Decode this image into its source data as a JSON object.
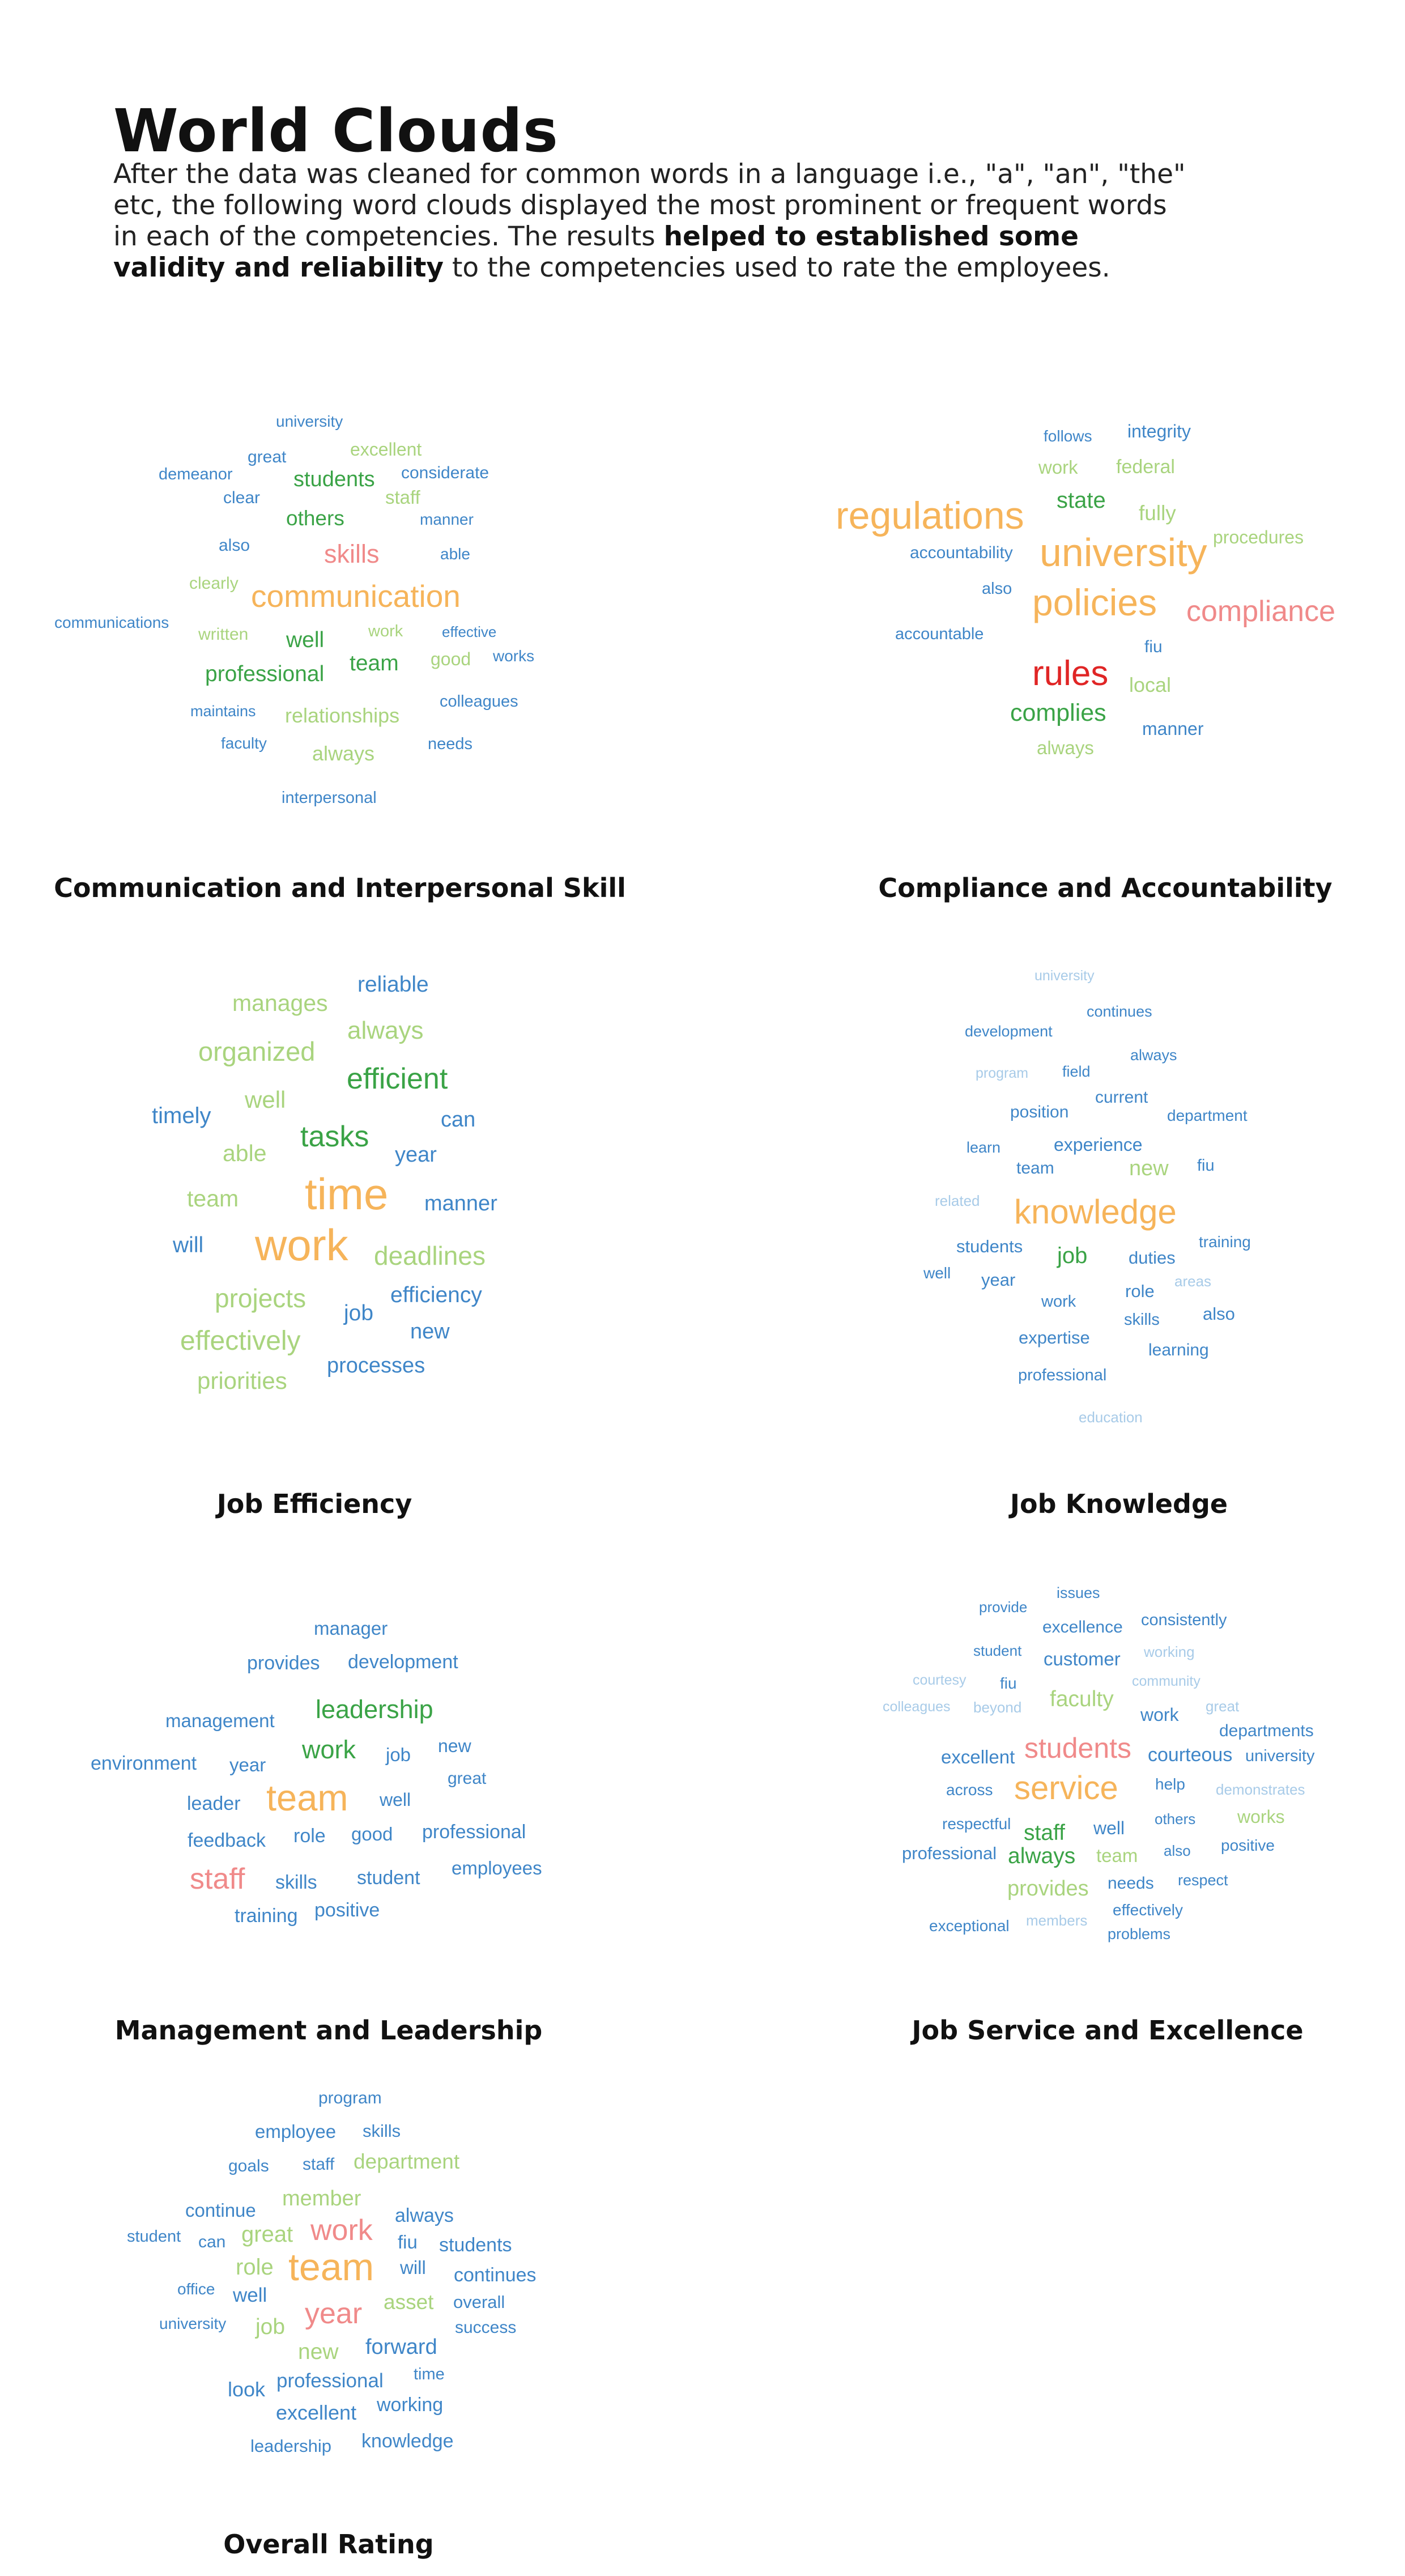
{
  "title": "World Clouds",
  "intro": {
    "lead": " After the data was cleaned for common words in a language i.e., \"a\", \"an\", \"the\" etc, the following word clouds displayed the most prominent or frequent words in each of the competencies. The results ",
    "emphasis": "helped to established some validity and reliability",
    "tail": " to the competencies used to rate the employees."
  },
  "colors": {
    "blue": "#3f86c8",
    "lightblue": "#a8cbe8",
    "green": "#3aa346",
    "lightgreen": "#a9d47e",
    "orange": "#f6b45a",
    "pink": "#f08a8a",
    "red": "#e02525"
  },
  "clouds": [
    {
      "caption": "Communication and Interpersonal Skill",
      "words": [
        {
          "text": "university",
          "color": "blue"
        },
        {
          "text": "great",
          "color": "blue"
        },
        {
          "text": "excellent",
          "color": "lightgreen"
        },
        {
          "text": "demeanor",
          "color": "blue"
        },
        {
          "text": "students",
          "color": "green"
        },
        {
          "text": "considerate",
          "color": "blue"
        },
        {
          "text": "clear",
          "color": "blue"
        },
        {
          "text": "staff",
          "color": "lightgreen"
        },
        {
          "text": "others",
          "color": "green"
        },
        {
          "text": "manner",
          "color": "blue"
        },
        {
          "text": "also",
          "color": "blue"
        },
        {
          "text": "skills",
          "color": "pink"
        },
        {
          "text": "able",
          "color": "blue"
        },
        {
          "text": "clearly",
          "color": "lightgreen"
        },
        {
          "text": "communication",
          "color": "orange"
        },
        {
          "text": "communications",
          "color": "blue"
        },
        {
          "text": "written",
          "color": "lightgreen"
        },
        {
          "text": "well",
          "color": "green"
        },
        {
          "text": "work",
          "color": "lightgreen"
        },
        {
          "text": "effective",
          "color": "blue"
        },
        {
          "text": "good",
          "color": "lightgreen"
        },
        {
          "text": "works",
          "color": "blue"
        },
        {
          "text": "professional",
          "color": "green"
        },
        {
          "text": "team",
          "color": "green"
        },
        {
          "text": "colleagues",
          "color": "blue"
        },
        {
          "text": "maintains",
          "color": "blue"
        },
        {
          "text": "relationships",
          "color": "lightgreen"
        },
        {
          "text": "faculty",
          "color": "blue"
        },
        {
          "text": "always",
          "color": "lightgreen"
        },
        {
          "text": "needs",
          "color": "blue"
        },
        {
          "text": "interpersonal",
          "color": "blue"
        }
      ]
    },
    {
      "caption": "Compliance and Accountability",
      "words": [
        {
          "text": "follows",
          "color": "blue"
        },
        {
          "text": "integrity",
          "color": "blue"
        },
        {
          "text": "work",
          "color": "lightgreen"
        },
        {
          "text": "federal",
          "color": "lightgreen"
        },
        {
          "text": "state",
          "color": "green"
        },
        {
          "text": "regulations",
          "color": "orange"
        },
        {
          "text": "fully",
          "color": "lightgreen"
        },
        {
          "text": "procedures",
          "color": "lightgreen"
        },
        {
          "text": "accountability",
          "color": "blue"
        },
        {
          "text": "university",
          "color": "orange"
        },
        {
          "text": "also",
          "color": "blue"
        },
        {
          "text": "policies",
          "color": "orange"
        },
        {
          "text": "compliance",
          "color": "pink"
        },
        {
          "text": "accountable",
          "color": "blue"
        },
        {
          "text": "fiu",
          "color": "blue"
        },
        {
          "text": "rules",
          "color": "red"
        },
        {
          "text": "local",
          "color": "lightgreen"
        },
        {
          "text": "complies",
          "color": "green"
        },
        {
          "text": "manner",
          "color": "blue"
        },
        {
          "text": "always",
          "color": "lightgreen"
        }
      ]
    },
    {
      "caption": "Job Efficiency",
      "words": [
        {
          "text": "reliable",
          "color": "blue"
        },
        {
          "text": "manages",
          "color": "lightgreen"
        },
        {
          "text": "always",
          "color": "lightgreen"
        },
        {
          "text": "organized",
          "color": "lightgreen"
        },
        {
          "text": "efficient",
          "color": "green"
        },
        {
          "text": "well",
          "color": "lightgreen"
        },
        {
          "text": "timely",
          "color": "blue"
        },
        {
          "text": "can",
          "color": "blue"
        },
        {
          "text": "tasks",
          "color": "green"
        },
        {
          "text": "able",
          "color": "lightgreen"
        },
        {
          "text": "year",
          "color": "blue"
        },
        {
          "text": "team",
          "color": "lightgreen"
        },
        {
          "text": "time",
          "color": "orange"
        },
        {
          "text": "manner",
          "color": "blue"
        },
        {
          "text": "will",
          "color": "blue"
        },
        {
          "text": "work",
          "color": "orange"
        },
        {
          "text": "deadlines",
          "color": "lightgreen"
        },
        {
          "text": "projects",
          "color": "lightgreen"
        },
        {
          "text": "efficiency",
          "color": "blue"
        },
        {
          "text": "job",
          "color": "blue"
        },
        {
          "text": "effectively",
          "color": "lightgreen"
        },
        {
          "text": "new",
          "color": "blue"
        },
        {
          "text": "processes",
          "color": "blue"
        },
        {
          "text": "priorities",
          "color": "lightgreen"
        }
      ]
    },
    {
      "caption": "Job Knowledge",
      "words": [
        {
          "text": "university",
          "color": "lightblue"
        },
        {
          "text": "continues",
          "color": "blue"
        },
        {
          "text": "development",
          "color": "blue"
        },
        {
          "text": "always",
          "color": "blue"
        },
        {
          "text": "program",
          "color": "lightblue"
        },
        {
          "text": "field",
          "color": "blue"
        },
        {
          "text": "current",
          "color": "blue"
        },
        {
          "text": "position",
          "color": "blue"
        },
        {
          "text": "department",
          "color": "blue"
        },
        {
          "text": "learn",
          "color": "blue"
        },
        {
          "text": "experience",
          "color": "blue"
        },
        {
          "text": "team",
          "color": "blue"
        },
        {
          "text": "new",
          "color": "lightgreen"
        },
        {
          "text": "fiu",
          "color": "blue"
        },
        {
          "text": "related",
          "color": "lightblue"
        },
        {
          "text": "knowledge",
          "color": "orange"
        },
        {
          "text": "training",
          "color": "blue"
        },
        {
          "text": "students",
          "color": "blue"
        },
        {
          "text": "job",
          "color": "green"
        },
        {
          "text": "duties",
          "color": "blue"
        },
        {
          "text": "well",
          "color": "blue"
        },
        {
          "text": "year",
          "color": "blue"
        },
        {
          "text": "areas",
          "color": "lightblue"
        },
        {
          "text": "role",
          "color": "blue"
        },
        {
          "text": "work",
          "color": "blue"
        },
        {
          "text": "also",
          "color": "blue"
        },
        {
          "text": "skills",
          "color": "blue"
        },
        {
          "text": "expertise",
          "color": "blue"
        },
        {
          "text": "learning",
          "color": "blue"
        },
        {
          "text": "professional",
          "color": "blue"
        },
        {
          "text": "education",
          "color": "lightblue"
        }
      ]
    },
    {
      "caption": "Management and Leadership",
      "words": [
        {
          "text": "manager",
          "color": "blue"
        },
        {
          "text": "provides",
          "color": "blue"
        },
        {
          "text": "development",
          "color": "blue"
        },
        {
          "text": "leadership",
          "color": "green"
        },
        {
          "text": "management",
          "color": "blue"
        },
        {
          "text": "work",
          "color": "green"
        },
        {
          "text": "new",
          "color": "blue"
        },
        {
          "text": "environment",
          "color": "blue"
        },
        {
          "text": "year",
          "color": "blue"
        },
        {
          "text": "job",
          "color": "blue"
        },
        {
          "text": "great",
          "color": "blue"
        },
        {
          "text": "leader",
          "color": "blue"
        },
        {
          "text": "team",
          "color": "orange"
        },
        {
          "text": "well",
          "color": "blue"
        },
        {
          "text": "feedback",
          "color": "blue"
        },
        {
          "text": "role",
          "color": "blue"
        },
        {
          "text": "good",
          "color": "blue"
        },
        {
          "text": "professional",
          "color": "blue"
        },
        {
          "text": "staff",
          "color": "pink"
        },
        {
          "text": "skills",
          "color": "blue"
        },
        {
          "text": "student",
          "color": "blue"
        },
        {
          "text": "employees",
          "color": "blue"
        },
        {
          "text": "training",
          "color": "blue"
        },
        {
          "text": "positive",
          "color": "blue"
        }
      ]
    },
    {
      "caption": "Job Service and Excellence",
      "words": [
        {
          "text": "issues",
          "color": "blue"
        },
        {
          "text": "provide",
          "color": "blue"
        },
        {
          "text": "excellence",
          "color": "blue"
        },
        {
          "text": "consistently",
          "color": "blue"
        },
        {
          "text": "student",
          "color": "blue"
        },
        {
          "text": "customer",
          "color": "blue"
        },
        {
          "text": "working",
          "color": "lightblue"
        },
        {
          "text": "courtesy",
          "color": "lightblue"
        },
        {
          "text": "fiu",
          "color": "blue"
        },
        {
          "text": "community",
          "color": "lightblue"
        },
        {
          "text": "colleagues",
          "color": "lightblue"
        },
        {
          "text": "beyond",
          "color": "lightblue"
        },
        {
          "text": "faculty",
          "color": "lightgreen"
        },
        {
          "text": "work",
          "color": "blue"
        },
        {
          "text": "great",
          "color": "lightblue"
        },
        {
          "text": "departments",
          "color": "blue"
        },
        {
          "text": "excellent",
          "color": "blue"
        },
        {
          "text": "students",
          "color": "pink"
        },
        {
          "text": "courteous",
          "color": "blue"
        },
        {
          "text": "university",
          "color": "blue"
        },
        {
          "text": "across",
          "color": "blue"
        },
        {
          "text": "service",
          "color": "orange"
        },
        {
          "text": "help",
          "color": "blue"
        },
        {
          "text": "demonstrates",
          "color": "lightblue"
        },
        {
          "text": "respectful",
          "color": "blue"
        },
        {
          "text": "others",
          "color": "blue"
        },
        {
          "text": "works",
          "color": "lightgreen"
        },
        {
          "text": "staff",
          "color": "green"
        },
        {
          "text": "well",
          "color": "blue"
        },
        {
          "text": "positive",
          "color": "blue"
        },
        {
          "text": "professional",
          "color": "blue"
        },
        {
          "text": "always",
          "color": "green"
        },
        {
          "text": "team",
          "color": "lightgreen"
        },
        {
          "text": "also",
          "color": "blue"
        },
        {
          "text": "provides",
          "color": "lightgreen"
        },
        {
          "text": "needs",
          "color": "blue"
        },
        {
          "text": "respect",
          "color": "blue"
        },
        {
          "text": "effectively",
          "color": "blue"
        },
        {
          "text": "exceptional",
          "color": "blue"
        },
        {
          "text": "members",
          "color": "lightblue"
        },
        {
          "text": "problems",
          "color": "blue"
        }
      ]
    },
    {
      "caption": "Overall Rating",
      "words": [
        {
          "text": "program",
          "color": "blue"
        },
        {
          "text": "employee",
          "color": "blue"
        },
        {
          "text": "skills",
          "color": "blue"
        },
        {
          "text": "goals",
          "color": "blue"
        },
        {
          "text": "staff",
          "color": "blue"
        },
        {
          "text": "department",
          "color": "lightgreen"
        },
        {
          "text": "member",
          "color": "lightgreen"
        },
        {
          "text": "continue",
          "color": "blue"
        },
        {
          "text": "always",
          "color": "blue"
        },
        {
          "text": "student",
          "color": "blue"
        },
        {
          "text": "can",
          "color": "blue"
        },
        {
          "text": "great",
          "color": "lightgreen"
        },
        {
          "text": "work",
          "color": "pink"
        },
        {
          "text": "fiu",
          "color": "blue"
        },
        {
          "text": "students",
          "color": "blue"
        },
        {
          "text": "role",
          "color": "lightgreen"
        },
        {
          "text": "team",
          "color": "orange"
        },
        {
          "text": "will",
          "color": "blue"
        },
        {
          "text": "continues",
          "color": "blue"
        },
        {
          "text": "office",
          "color": "blue"
        },
        {
          "text": "well",
          "color": "blue"
        },
        {
          "text": "asset",
          "color": "lightgreen"
        },
        {
          "text": "overall",
          "color": "blue"
        },
        {
          "text": "university",
          "color": "blue"
        },
        {
          "text": "job",
          "color": "lightgreen"
        },
        {
          "text": "year",
          "color": "pink"
        },
        {
          "text": "success",
          "color": "blue"
        },
        {
          "text": "new",
          "color": "lightgreen"
        },
        {
          "text": "forward",
          "color": "blue"
        },
        {
          "text": "time",
          "color": "blue"
        },
        {
          "text": "look",
          "color": "blue"
        },
        {
          "text": "professional",
          "color": "blue"
        },
        {
          "text": "excellent",
          "color": "blue"
        },
        {
          "text": "working",
          "color": "blue"
        },
        {
          "text": "leadership",
          "color": "blue"
        },
        {
          "text": "knowledge",
          "color": "blue"
        }
      ]
    }
  ]
}
